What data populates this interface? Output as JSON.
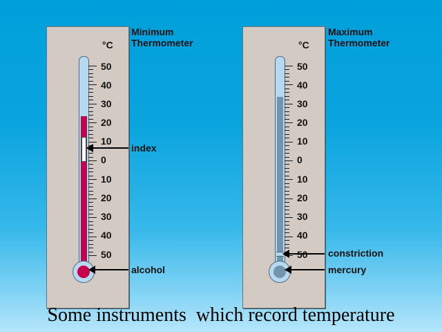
{
  "caption": "Some instruments  which record temperature",
  "colors": {
    "alcohol": "#c8004b",
    "mercury": "#7394ad",
    "glass": "#b6d9ef",
    "panel": "#d3cac4"
  },
  "minimum": {
    "title_line1": "Minimum",
    "title_line2": "Thermometer",
    "unit": "°C",
    "scale": [
      "50",
      "40",
      "30",
      "20",
      "10",
      "0",
      "10",
      "20",
      "30",
      "40",
      "50"
    ],
    "labels": {
      "index": "index",
      "alcohol": "alcohol"
    }
  },
  "maximum": {
    "title_line1": "Maximum",
    "title_line2": "Thermometer",
    "unit": "°C",
    "scale": [
      "50",
      "40",
      "30",
      "20",
      "10",
      "0",
      "10",
      "20",
      "30",
      "40",
      "50"
    ],
    "labels": {
      "constriction": "constriction",
      "mercury": "mercury"
    }
  }
}
